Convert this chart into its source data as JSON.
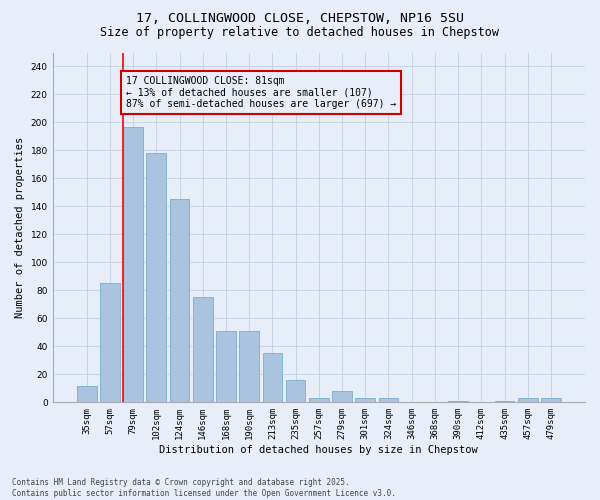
{
  "title_line1": "17, COLLINGWOOD CLOSE, CHEPSTOW, NP16 5SU",
  "title_line2": "Size of property relative to detached houses in Chepstow",
  "xlabel": "Distribution of detached houses by size in Chepstow",
  "ylabel": "Number of detached properties",
  "categories": [
    "35sqm",
    "57sqm",
    "79sqm",
    "102sqm",
    "124sqm",
    "146sqm",
    "168sqm",
    "190sqm",
    "213sqm",
    "235sqm",
    "257sqm",
    "279sqm",
    "301sqm",
    "324sqm",
    "346sqm",
    "368sqm",
    "390sqm",
    "412sqm",
    "435sqm",
    "457sqm",
    "479sqm"
  ],
  "values": [
    12,
    85,
    197,
    178,
    145,
    75,
    51,
    51,
    35,
    16,
    3,
    8,
    3,
    3,
    0,
    0,
    1,
    0,
    1,
    3,
    3
  ],
  "bar_color": "#aac4e0",
  "bar_edge_color": "#7aafd0",
  "grid_color": "#c8d4e8",
  "background_color": "#e8eef8",
  "annotation_box_color": "#cc0000",
  "annotation_line1": "17 COLLINGWOOD CLOSE: 81sqm",
  "annotation_line2": "← 13% of detached houses are smaller (107)",
  "annotation_line3": "87% of semi-detached houses are larger (697) →",
  "ylim": [
    0,
    250
  ],
  "yticks": [
    0,
    20,
    40,
    60,
    80,
    100,
    120,
    140,
    160,
    180,
    200,
    220,
    240
  ],
  "footer_line1": "Contains HM Land Registry data © Crown copyright and database right 2025.",
  "footer_line2": "Contains public sector information licensed under the Open Government Licence v3.0.",
  "title_fontsize": 9.5,
  "subtitle_fontsize": 8.5,
  "tick_fontsize": 6.5,
  "ylabel_fontsize": 7.5,
  "xlabel_fontsize": 7.5,
  "annotation_fontsize": 7.0,
  "footer_fontsize": 5.5
}
